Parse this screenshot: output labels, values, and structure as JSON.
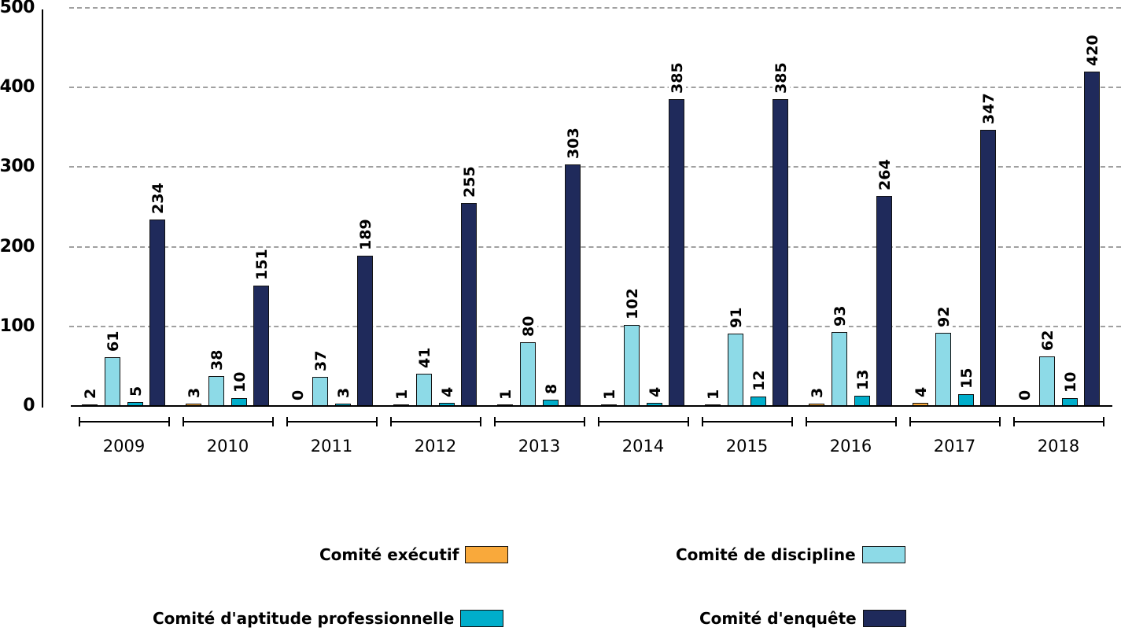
{
  "chart_data": {
    "type": "bar",
    "title": "",
    "xlabel": "",
    "ylabel": "",
    "ylim": [
      0,
      500
    ],
    "yticks": [
      0,
      100,
      200,
      300,
      400,
      500
    ],
    "grid": "horizontal dashed",
    "legend_position": "bottom",
    "categories": [
      "2009",
      "2010",
      "2011",
      "2012",
      "2013",
      "2014",
      "2015",
      "2016",
      "2017",
      "2018"
    ],
    "series": [
      {
        "name": "Comité exécutif",
        "color": "#F9A93B",
        "values": [
          2,
          3,
          0,
          1,
          1,
          1,
          1,
          3,
          4,
          0
        ]
      },
      {
        "name": "Comité de discipline",
        "color": "#8DDAE7",
        "values": [
          61,
          38,
          37,
          41,
          80,
          102,
          91,
          93,
          92,
          62
        ]
      },
      {
        "name": "Comité d'aptitude professionnelle",
        "color": "#00AECB",
        "values": [
          5,
          10,
          3,
          4,
          8,
          4,
          12,
          13,
          15,
          10
        ]
      },
      {
        "name": "Comité d'enquête",
        "color": "#1F2A5B",
        "values": [
          234,
          151,
          189,
          255,
          303,
          385,
          385,
          264,
          347,
          420
        ]
      }
    ]
  },
  "legend": [
    {
      "label": "Comité exécutif",
      "color": "#F9A93B"
    },
    {
      "label": "Comité de discipline",
      "color": "#8DDAE7"
    },
    {
      "label": "Comité d'aptitude professionnelle",
      "color": "#00AECB"
    },
    {
      "label": "Comité d'enquête",
      "color": "#1F2A5B"
    }
  ]
}
